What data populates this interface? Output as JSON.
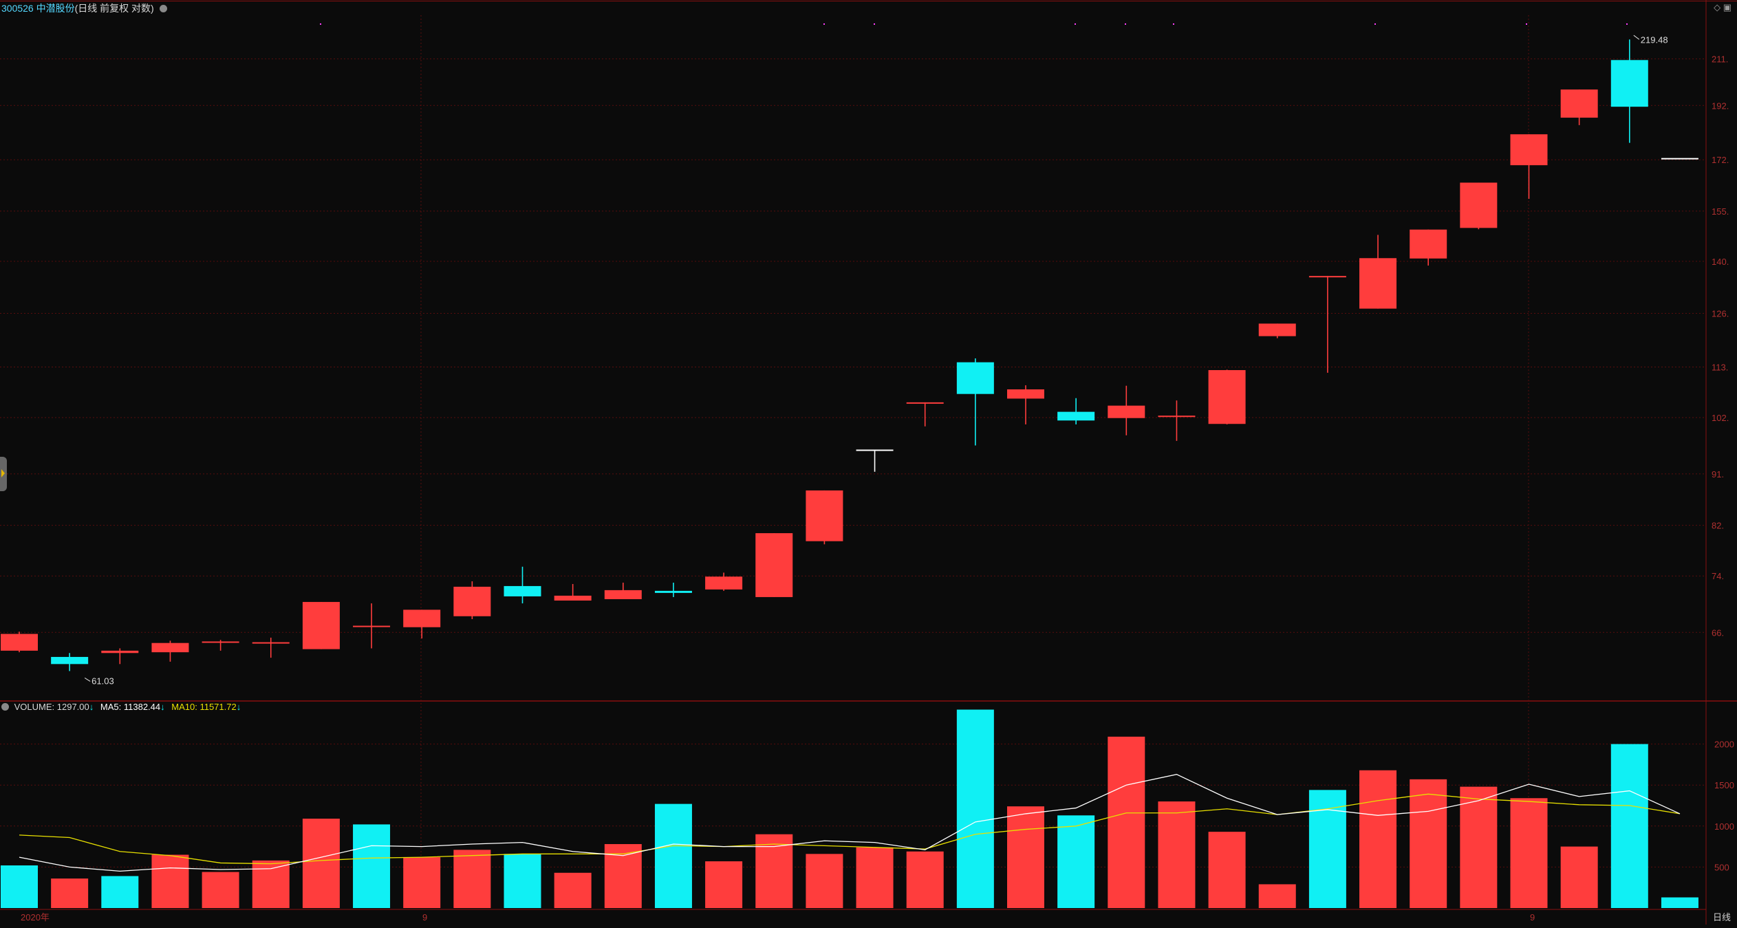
{
  "header": {
    "code": "300526",
    "name": "中潜股份",
    "mode": "(日线 前复权 对数)"
  },
  "volume_header": {
    "label": "VOLUME:",
    "value": "1297.00",
    "ma5_label": "MA5:",
    "ma5_value": "11382.44",
    "ma10_label": "MA10:",
    "ma10_value": "11571.72"
  },
  "colors": {
    "up": "#ff3d3d",
    "down": "#10f0f4",
    "grid": "#5a0d0d",
    "axis_text": "#b03030",
    "ma5": "#ffffff",
    "ma10": "#e8e000",
    "background": "#0b0b0b"
  },
  "chart_data": [
    {
      "type": "candlestick",
      "scale": "log",
      "y_ticks": [
        "211.",
        "192.",
        "172.",
        "155.",
        "140.",
        "126.",
        "113.",
        "102.",
        "91.",
        "82.",
        "74.",
        "66."
      ],
      "x_labels": [
        "2020年",
        "9",
        "9"
      ],
      "annotations": [
        {
          "text": "219.48",
          "kind": "high"
        },
        {
          "text": "61.03",
          "kind": "low"
        }
      ],
      "candles": [
        {
          "o": 63.6,
          "c": 65.8,
          "h": 66.1,
          "l": 63.4
        },
        {
          "o": 62.8,
          "c": 61.9,
          "h": 63.3,
          "l": 61.03
        },
        {
          "o": 63.3,
          "c": 63.6,
          "h": 63.9,
          "l": 61.9
        },
        {
          "o": 63.4,
          "c": 64.6,
          "h": 64.9,
          "l": 62.2
        },
        {
          "o": 64.7,
          "c": 64.8,
          "h": 65.0,
          "l": 63.6
        },
        {
          "o": 64.6,
          "c": 64.7,
          "h": 65.3,
          "l": 62.7
        },
        {
          "o": 63.8,
          "c": 70.2,
          "h": 70.2,
          "l": 63.8
        },
        {
          "o": 66.9,
          "c": 66.9,
          "h": 70.0,
          "l": 63.9
        },
        {
          "o": 66.7,
          "c": 69.1,
          "h": 69.1,
          "l": 65.2
        },
        {
          "o": 68.2,
          "c": 72.4,
          "h": 73.2,
          "l": 67.8
        },
        {
          "o": 72.5,
          "c": 71.0,
          "h": 75.4,
          "l": 70.0
        },
        {
          "o": 70.4,
          "c": 71.1,
          "h": 72.8,
          "l": 70.4
        },
        {
          "o": 70.6,
          "c": 71.9,
          "h": 73.0,
          "l": 70.6
        },
        {
          "o": 71.8,
          "c": 71.5,
          "h": 73.0,
          "l": 70.9
        },
        {
          "o": 72.0,
          "c": 73.9,
          "h": 74.5,
          "l": 71.8
        },
        {
          "o": 70.9,
          "c": 80.7,
          "h": 80.7,
          "l": 70.9
        },
        {
          "o": 79.4,
          "c": 88.0,
          "h": 88.0,
          "l": 78.9
        },
        {
          "o": 95.6,
          "c": 95.6,
          "h": 95.6,
          "l": 91.4
        },
        {
          "o": 105.2,
          "c": 105.2,
          "h": 105.2,
          "l": 100.2
        },
        {
          "o": 114.1,
          "c": 107.0,
          "h": 115.0,
          "l": 96.4
        },
        {
          "o": 106.0,
          "c": 108.0,
          "h": 108.9,
          "l": 100.6
        },
        {
          "o": 103.2,
          "c": 101.4,
          "h": 106.1,
          "l": 100.6
        },
        {
          "o": 101.9,
          "c": 104.5,
          "h": 108.8,
          "l": 98.4
        },
        {
          "o": 102.4,
          "c": 102.4,
          "h": 105.6,
          "l": 97.3
        },
        {
          "o": 100.7,
          "c": 112.3,
          "h": 112.4,
          "l": 100.6
        },
        {
          "o": 120.3,
          "c": 123.4,
          "h": 123.4,
          "l": 119.8
        },
        {
          "o": 135.9,
          "c": 135.9,
          "h": 135.9,
          "l": 111.7
        },
        {
          "o": 127.2,
          "c": 140.9,
          "h": 147.7,
          "l": 127.2
        },
        {
          "o": 140.8,
          "c": 149.3,
          "h": 149.3,
          "l": 138.8
        },
        {
          "o": 149.8,
          "c": 164.2,
          "h": 164.2,
          "l": 149.4
        },
        {
          "o": 170.1,
          "c": 181.1,
          "h": 181.1,
          "l": 158.9
        },
        {
          "o": 187.3,
          "c": 198.3,
          "h": 198.3,
          "l": 184.5
        },
        {
          "o": 210.5,
          "c": 191.5,
          "h": 219.48,
          "l": 178.0
        },
        {
          "o": 172.6,
          "c": 172.6,
          "h": 172.6,
          "l": 172.6
        }
      ]
    },
    {
      "type": "bar",
      "series_name": "VOLUME",
      "y_ticks": [
        "2000",
        "1500",
        "1000",
        "500"
      ],
      "values": [
        520,
        360,
        390,
        650,
        440,
        580,
        1090,
        1020,
        620,
        710,
        660,
        430,
        780,
        1270,
        570,
        900,
        660,
        740,
        690,
        2420,
        1240,
        1130,
        2090,
        1300,
        930,
        290,
        1440,
        1680,
        1570,
        1480,
        1340,
        750,
        2000,
        130
      ],
      "directions": [
        "down",
        "up",
        "down",
        "up",
        "up",
        "up",
        "up",
        "down",
        "up",
        "up",
        "down",
        "up",
        "up",
        "down",
        "up",
        "up",
        "up",
        "up",
        "up",
        "down",
        "up",
        "down",
        "up",
        "up",
        "up",
        "up",
        "down",
        "up",
        "up",
        "up",
        "up",
        "up",
        "down",
        "down"
      ],
      "ma5": [
        620,
        500,
        450,
        490,
        470,
        480,
        620,
        760,
        750,
        780,
        800,
        690,
        640,
        780,
        750,
        750,
        820,
        800,
        710,
        1050,
        1150,
        1220,
        1500,
        1630,
        1340,
        1140,
        1200,
        1130,
        1180,
        1310,
        1510,
        1360,
        1430,
        1150
      ],
      "ma10": [
        890,
        860,
        690,
        640,
        550,
        540,
        580,
        610,
        620,
        640,
        660,
        660,
        660,
        760,
        750,
        780,
        760,
        740,
        720,
        900,
        960,
        1000,
        1160,
        1160,
        1210,
        1140,
        1210,
        1310,
        1390,
        1330,
        1300,
        1260,
        1250,
        1150
      ]
    }
  ],
  "axis_corner_label": "日线"
}
